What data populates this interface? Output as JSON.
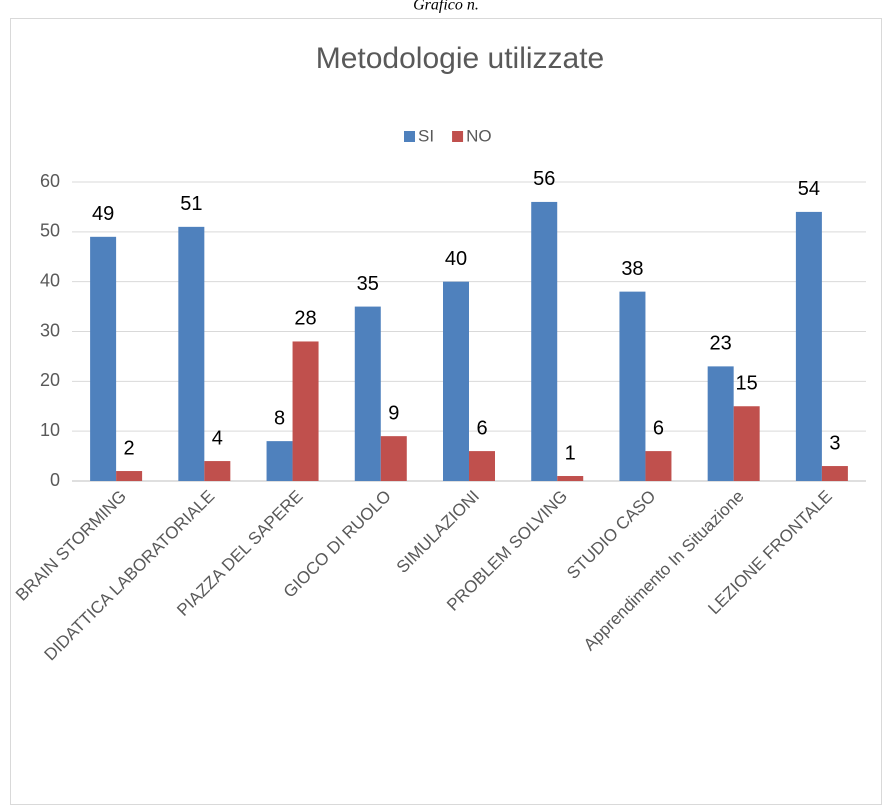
{
  "caption": "Grafico n.",
  "chart_data": {
    "type": "bar",
    "title": "Metodologie utilizzate",
    "categories": [
      "BRAIN STORMING",
      "DIDATTICA LABORATORIALE",
      "PIAZZA DEL SAPERE",
      "GIOCO DI RUOLO",
      "SIMULAZIONI",
      "PROBLEM SOLVING",
      "STUDIO CASO",
      "Apprendimento In Situazione",
      "LEZIONE FRONTALE"
    ],
    "series": [
      {
        "name": "SI",
        "color": "#4f81bd",
        "values": [
          49,
          51,
          8,
          35,
          40,
          56,
          38,
          23,
          54
        ]
      },
      {
        "name": "NO",
        "color": "#c0504d",
        "values": [
          2,
          4,
          28,
          9,
          6,
          1,
          6,
          15,
          3
        ]
      }
    ],
    "ylim": [
      0,
      60
    ],
    "yticks": [
      0,
      10,
      20,
      30,
      40,
      50,
      60
    ],
    "grid": true,
    "legend": "top"
  }
}
